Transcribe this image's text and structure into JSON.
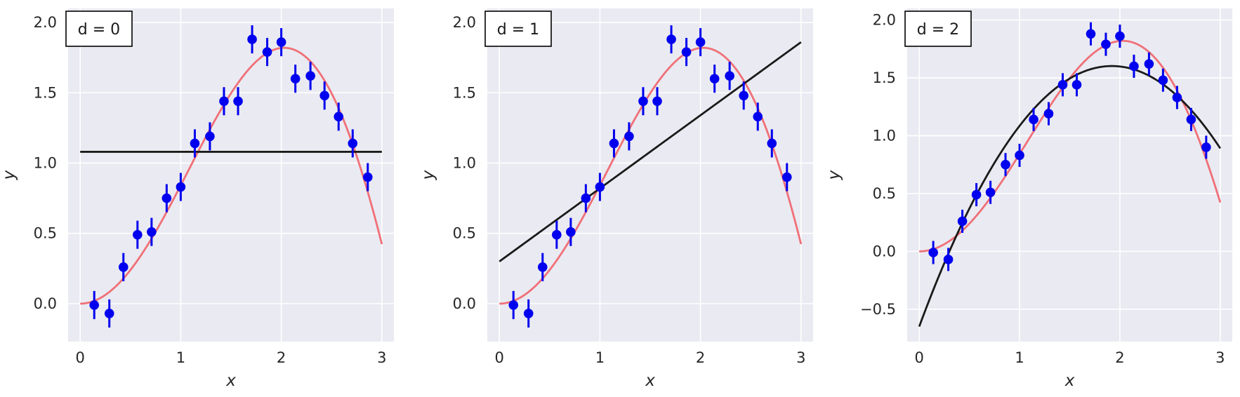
{
  "chart_data": [
    {
      "type": "scatter",
      "label": "d = 0",
      "xlabel": "x",
      "ylabel": "y",
      "xlim": [
        -0.12,
        3.12
      ],
      "ylim": [
        -0.27,
        2.1
      ],
      "xticks": [
        0,
        1,
        2,
        3
      ],
      "yticks": [
        0.0,
        0.5,
        1.0,
        1.5,
        2.0
      ],
      "ytick_labels": [
        "0.0",
        "0.5",
        "1.0",
        "1.5",
        "2.0"
      ],
      "grid": true,
      "data": {
        "x": [
          0.14,
          0.29,
          0.43,
          0.57,
          0.71,
          0.86,
          1.0,
          1.14,
          1.29,
          1.43,
          1.57,
          1.71,
          1.86,
          2.0,
          2.14,
          2.29,
          2.43,
          2.57,
          2.71,
          2.86
        ],
        "y": [
          -0.01,
          -0.07,
          0.26,
          0.49,
          0.51,
          0.75,
          0.83,
          1.14,
          1.19,
          1.44,
          1.44,
          1.88,
          1.79,
          1.86,
          1.6,
          1.62,
          1.48,
          1.33,
          1.14,
          0.9
        ],
        "yerr": 0.1
      },
      "true_curve": "x*sin(x)",
      "fit_curve": {
        "degree": 0,
        "coeffs": [
          1.08
        ]
      }
    },
    {
      "type": "scatter",
      "label": "d = 1",
      "xlabel": "x",
      "ylabel": "y",
      "xlim": [
        -0.12,
        3.12
      ],
      "ylim": [
        -0.27,
        2.1
      ],
      "xticks": [
        0,
        1,
        2,
        3
      ],
      "yticks": [
        0.0,
        0.5,
        1.0,
        1.5,
        2.0
      ],
      "ytick_labels": [
        "0.0",
        "0.5",
        "1.0",
        "1.5",
        "2.0"
      ],
      "grid": true,
      "data": {
        "x": [
          0.14,
          0.29,
          0.43,
          0.57,
          0.71,
          0.86,
          1.0,
          1.14,
          1.29,
          1.43,
          1.57,
          1.71,
          1.86,
          2.0,
          2.14,
          2.29,
          2.43,
          2.57,
          2.71,
          2.86
        ],
        "y": [
          -0.01,
          -0.07,
          0.26,
          0.49,
          0.51,
          0.75,
          0.83,
          1.14,
          1.19,
          1.44,
          1.44,
          1.88,
          1.79,
          1.86,
          1.6,
          1.62,
          1.48,
          1.33,
          1.14,
          0.9
        ],
        "yerr": 0.1
      },
      "true_curve": "x*sin(x)",
      "fit_curve": {
        "degree": 1,
        "coeffs": [
          0.3,
          0.52
        ]
      }
    },
    {
      "type": "scatter",
      "label": "d = 2",
      "xlabel": "x",
      "ylabel": "y",
      "xlim": [
        -0.12,
        3.12
      ],
      "ylim": [
        -0.78,
        2.1
      ],
      "xticks": [
        0,
        1,
        2,
        3
      ],
      "yticks": [
        -0.5,
        0.0,
        0.5,
        1.0,
        1.5,
        2.0
      ],
      "ytick_labels": [
        "−0.5",
        "0.0",
        "0.5",
        "1.0",
        "1.5",
        "2.0"
      ],
      "grid": true,
      "data": {
        "x": [
          0.14,
          0.29,
          0.43,
          0.57,
          0.71,
          0.86,
          1.0,
          1.14,
          1.29,
          1.43,
          1.57,
          1.71,
          1.86,
          2.0,
          2.14,
          2.29,
          2.43,
          2.57,
          2.71,
          2.86
        ],
        "y": [
          -0.01,
          -0.07,
          0.26,
          0.49,
          0.51,
          0.75,
          0.83,
          1.14,
          1.19,
          1.44,
          1.44,
          1.88,
          1.79,
          1.86,
          1.6,
          1.62,
          1.48,
          1.33,
          1.14,
          0.9
        ],
        "yerr": 0.1
      },
      "true_curve": "x*sin(x)",
      "fit_curve": {
        "degree": 2,
        "coeffs": [
          -0.65,
          2.345,
          -0.6105
        ]
      }
    }
  ],
  "colors": {
    "plot_background": "#eaeaf2",
    "grid": "#ffffff",
    "points": "#0000ee",
    "true_curve": "#f07078",
    "fit_curve": "#1a1a1a",
    "legend_border": "#000000",
    "text": "#262626"
  }
}
